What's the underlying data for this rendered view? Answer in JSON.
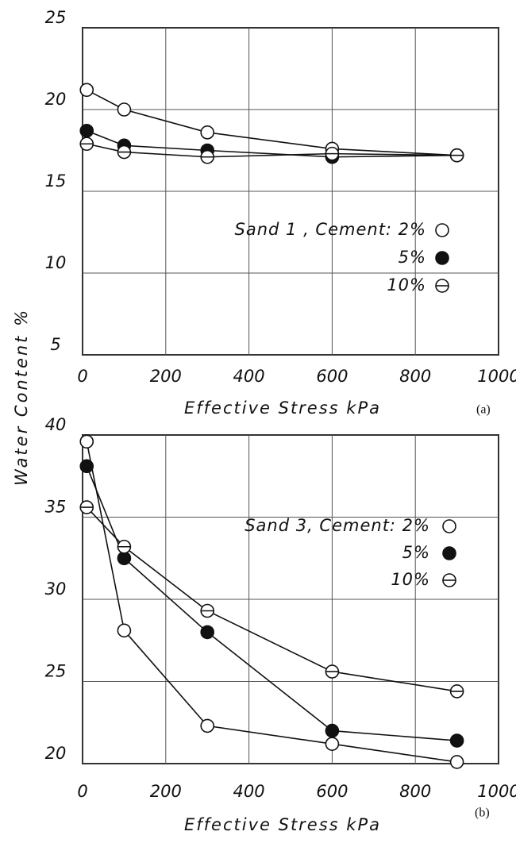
{
  "chart_data": [
    {
      "type": "scatter",
      "ylabel": "Water Content %",
      "xlabel": "Effective Stress kPa",
      "caption": "(a)",
      "x": [
        10,
        100,
        300,
        600,
        900
      ],
      "xlim": [
        0,
        1000
      ],
      "xticks": [
        0,
        200,
        400,
        600,
        800,
        1000
      ],
      "ylim": [
        5,
        25
      ],
      "yticks": [
        5,
        10,
        15,
        20,
        25
      ],
      "grid": true,
      "legend": "right",
      "series": [
        {
          "name": "Sand 1 , Cement: 2%",
          "color": "#111111",
          "marker": "open",
          "values": [
            21.2,
            20.0,
            18.6,
            17.6,
            17.2
          ]
        },
        {
          "name": "5%",
          "color": "#111111",
          "marker": "filled",
          "values": [
            18.7,
            17.8,
            17.5,
            17.1,
            17.2
          ]
        },
        {
          "name": "10%",
          "color": "#111111",
          "marker": "barred",
          "values": [
            17.9,
            17.4,
            17.1,
            17.3,
            17.2
          ]
        }
      ]
    },
    {
      "type": "scatter",
      "xlabel": "Effective Stress kPa",
      "caption": "(b)",
      "x": [
        10,
        100,
        300,
        600,
        900
      ],
      "xlim": [
        0,
        1000
      ],
      "xticks": [
        0,
        200,
        400,
        600,
        800,
        1000
      ],
      "ylim": [
        20,
        40
      ],
      "yticks": [
        20,
        25,
        30,
        35,
        40
      ],
      "grid": true,
      "legend": "upper right",
      "series": [
        {
          "name": "Sand 3, Cement: 2%",
          "color": "#111111",
          "marker": "open",
          "values": [
            39.6,
            28.1,
            22.3,
            21.2,
            20.1
          ]
        },
        {
          "name": "5%",
          "color": "#111111",
          "marker": "filled",
          "values": [
            38.1,
            32.5,
            28.0,
            22.0,
            21.4
          ]
        },
        {
          "name": "10%",
          "color": "#111111",
          "marker": "barred",
          "values": [
            35.6,
            33.2,
            29.3,
            25.6,
            24.4
          ]
        }
      ]
    }
  ]
}
